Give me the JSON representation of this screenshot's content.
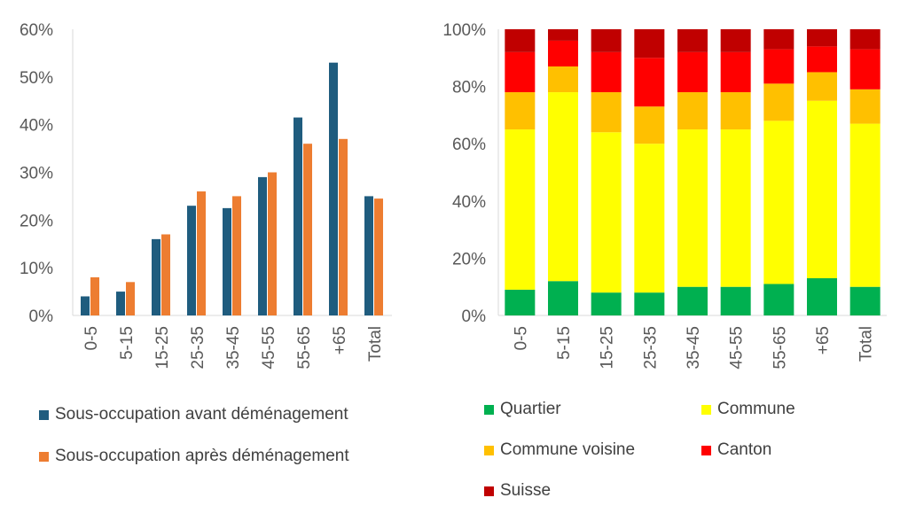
{
  "chart_data": [
    {
      "type": "bar",
      "categories": [
        "0-5",
        "5-15",
        "15-25",
        "25-35",
        "35-45",
        "45-55",
        "55-65",
        "+65",
        "Total"
      ],
      "ylim": [
        0,
        0.6
      ],
      "yticks": [
        "0%",
        "10%",
        "20%",
        "30%",
        "40%",
        "50%",
        "60%"
      ],
      "grid": false,
      "legend_position": "bottom",
      "series": [
        {
          "name": "Sous-occupation avant déménagement",
          "color": "#1F5C7E",
          "values": [
            0.04,
            0.05,
            0.16,
            0.23,
            0.225,
            0.29,
            0.415,
            0.53,
            0.25
          ]
        },
        {
          "name": "Sous-occupation après déménagement",
          "color": "#ED7D31",
          "values": [
            0.08,
            0.07,
            0.17,
            0.26,
            0.25,
            0.3,
            0.36,
            0.37,
            0.245
          ]
        }
      ]
    },
    {
      "type": "bar",
      "stacked": true,
      "categories": [
        "0-5",
        "5-15",
        "15-25",
        "25-35",
        "35-45",
        "45-55",
        "55-65",
        "+65",
        "Total"
      ],
      "ylim": [
        0,
        1
      ],
      "yticks": [
        "0%",
        "20%",
        "40%",
        "60%",
        "80%",
        "100%"
      ],
      "grid": false,
      "legend_position": "bottom",
      "series": [
        {
          "name": "Quartier",
          "color": "#00B050",
          "values": [
            0.09,
            0.12,
            0.08,
            0.08,
            0.1,
            0.1,
            0.11,
            0.13,
            0.1
          ]
        },
        {
          "name": "Commune",
          "color": "#FFFF00",
          "values": [
            0.56,
            0.66,
            0.56,
            0.52,
            0.55,
            0.55,
            0.57,
            0.62,
            0.57
          ]
        },
        {
          "name": "Commune voisine",
          "color": "#FFC000",
          "values": [
            0.13,
            0.09,
            0.14,
            0.13,
            0.13,
            0.13,
            0.13,
            0.1,
            0.12
          ]
        },
        {
          "name": "Canton",
          "color": "#FF0000",
          "values": [
            0.14,
            0.09,
            0.14,
            0.17,
            0.14,
            0.14,
            0.12,
            0.09,
            0.14
          ]
        },
        {
          "name": "Suisse",
          "color": "#C00000",
          "values": [
            0.08,
            0.04,
            0.08,
            0.1,
            0.08,
            0.08,
            0.07,
            0.06,
            0.07
          ]
        }
      ]
    }
  ]
}
